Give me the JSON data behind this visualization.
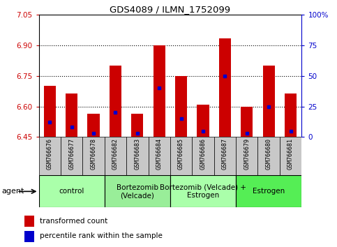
{
  "title": "GDS4089 / ILMN_1752099",
  "samples": [
    "GSM766676",
    "GSM766677",
    "GSM766678",
    "GSM766682",
    "GSM766683",
    "GSM766684",
    "GSM766685",
    "GSM766686",
    "GSM766687",
    "GSM766679",
    "GSM766680",
    "GSM766681"
  ],
  "red_values": [
    6.7,
    6.665,
    6.565,
    6.8,
    6.565,
    6.9,
    6.75,
    6.61,
    6.935,
    6.6,
    6.8,
    6.665
  ],
  "blue_percentiles": [
    12,
    8,
    3,
    20,
    3,
    40,
    15,
    5,
    50,
    3,
    25,
    5
  ],
  "ymin": 6.45,
  "ymax": 7.05,
  "yticks_left": [
    6.45,
    6.6,
    6.75,
    6.9,
    7.05
  ],
  "yticks_right": [
    0,
    25,
    50,
    75,
    100
  ],
  "hlines": [
    6.6,
    6.75,
    6.9
  ],
  "groups": [
    {
      "label": "control",
      "start": 0,
      "end": 3,
      "color": "#aaffaa"
    },
    {
      "label": "Bortezomib\n(Velcade)",
      "start": 3,
      "end": 6,
      "color": "#99ee99"
    },
    {
      "label": "Bortezomib (Velcade) +\nEstrogen",
      "start": 6,
      "end": 9,
      "color": "#aaffaa"
    },
    {
      "label": "Estrogen",
      "start": 9,
      "end": 12,
      "color": "#55ee55"
    }
  ],
  "bar_color": "#cc0000",
  "dot_color": "#0000cc",
  "legend_red": "transformed count",
  "legend_blue": "percentile rank within the sample",
  "bar_width": 0.55,
  "xtick_bg": "#c8c8c8"
}
